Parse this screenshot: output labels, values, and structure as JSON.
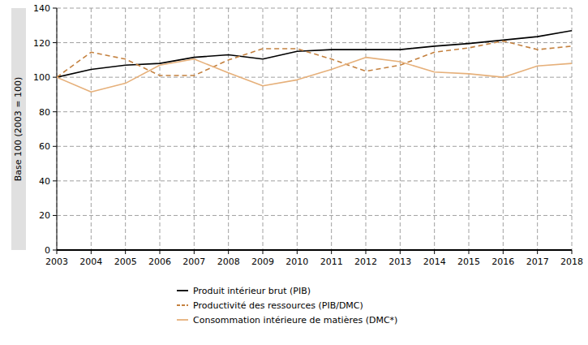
{
  "chart_data": {
    "type": "line",
    "ylabel": "Base 100 (2003 = 100)",
    "x": [
      2003,
      2004,
      2005,
      2006,
      2007,
      2008,
      2009,
      2010,
      2011,
      2012,
      2013,
      2014,
      2015,
      2016,
      2017,
      2018
    ],
    "xlim": [
      2003,
      2018
    ],
    "xticks": [
      2003,
      2004,
      2005,
      2006,
      2007,
      2008,
      2009,
      2010,
      2011,
      2012,
      2013,
      2014,
      2015,
      2016,
      2017,
      2018
    ],
    "ylim": [
      0,
      140
    ],
    "yticks": [
      0,
      20,
      40,
      60,
      80,
      100,
      120,
      140
    ],
    "grid": true,
    "legend": "bottom",
    "series": [
      {
        "name": "Produit intérieur brut (PIB)",
        "color": "#000000",
        "line_style": "solid",
        "values": [
          100,
          104.5,
          107,
          108,
          111.5,
          113,
          110.5,
          115,
          116,
          116,
          116,
          118,
          119.5,
          121.5,
          123.5,
          127
        ]
      },
      {
        "name": "Productivité des ressources (PIB/DMC)",
        "color": "#c4813f",
        "line_style": "dashed",
        "values": [
          100,
          114.5,
          110.5,
          101,
          101,
          110,
          116.5,
          116.5,
          110.5,
          103.5,
          107,
          114.5,
          117,
          121,
          116,
          118
        ]
      },
      {
        "name": "Consommation intérieure de matières (DMC*)",
        "color": "#e6b07a",
        "line_style": "solid",
        "values": [
          100,
          91.5,
          96.5,
          107,
          110.5,
          102.5,
          95,
          98.5,
          104.5,
          111.5,
          109,
          103,
          102,
          100,
          106.5,
          108
        ]
      }
    ]
  }
}
